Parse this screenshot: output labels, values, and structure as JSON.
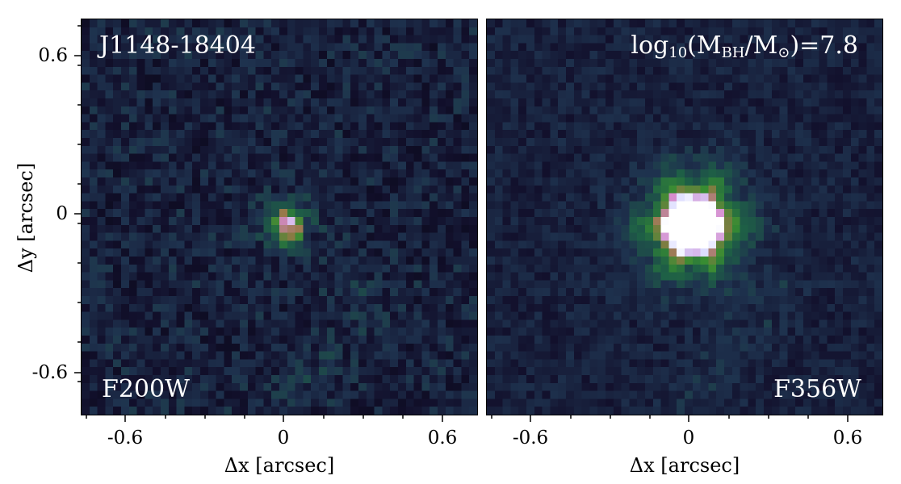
{
  "figure": {
    "left_panel": {
      "object_name": "J1148-18404",
      "filter": "F200W",
      "source_peak": 0.55
    },
    "right_panel": {
      "mass_prefix": "log",
      "mass_sub": "10",
      "mass_open": "(M",
      "mass_bh": "BH",
      "mass_slash": "/M",
      "mass_sun": "⊙",
      "mass_close": ")=7.8",
      "filter": "F356W",
      "source_peak": 4.0
    },
    "axes": {
      "xlabel": "Δx [arcsec]",
      "ylabel": "Δy [arcsec]",
      "xticks": [
        "-0.6",
        "0",
        "0.6"
      ],
      "yticks": [
        "0.6",
        "0",
        "-0.6"
      ],
      "range_arcsec": [
        -0.75,
        0.75
      ]
    },
    "colors": {
      "background": "#0e0c1e",
      "overlay_text": "#ffffff"
    }
  }
}
